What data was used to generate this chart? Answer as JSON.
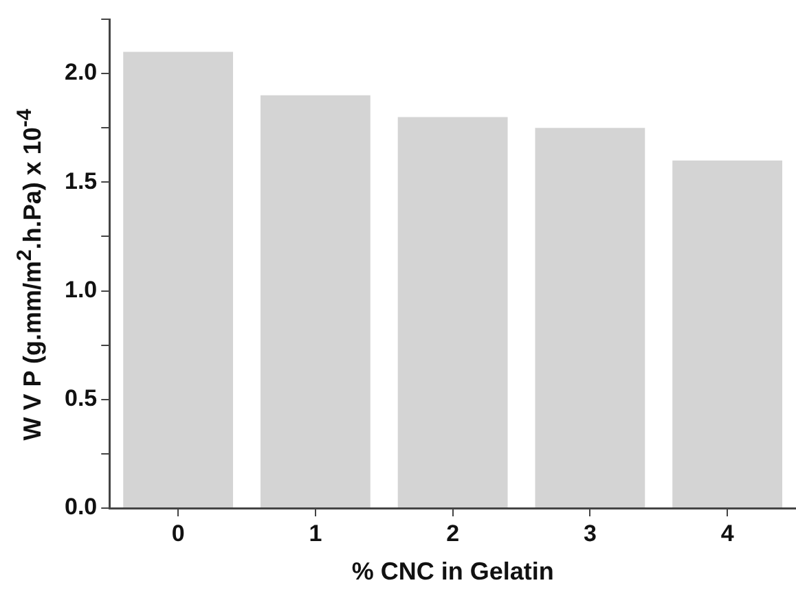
{
  "chart_data": {
    "type": "bar",
    "xlabel": "% CNC in Gelatin",
    "ylabel": "W V P (g.mm/m$^{2}$.h.Pa) x 10$^{-4}$",
    "categories": [
      "0",
      "1",
      "2",
      "3",
      "4"
    ],
    "values": [
      2.1,
      1.9,
      1.8,
      1.75,
      1.6
    ],
    "color": "#d4d4d4",
    "ylim": [
      0,
      2.25
    ],
    "yticks": [
      {
        "value": 0,
        "label": "0.0"
      },
      {
        "value": 0.25,
        "label": null
      },
      {
        "value": 0.5,
        "label": "0.5"
      },
      {
        "value": 0.75,
        "label": null
      },
      {
        "value": 1.0,
        "label": "1.0"
      },
      {
        "value": 1.25,
        "label": null
      },
      {
        "value": 1.5,
        "label": "1.5"
      },
      {
        "value": 1.75,
        "label": null
      },
      {
        "value": 2.0,
        "label": "2.0"
      },
      {
        "value": 2.25,
        "label": null
      }
    ],
    "grid": false,
    "legend": false
  }
}
